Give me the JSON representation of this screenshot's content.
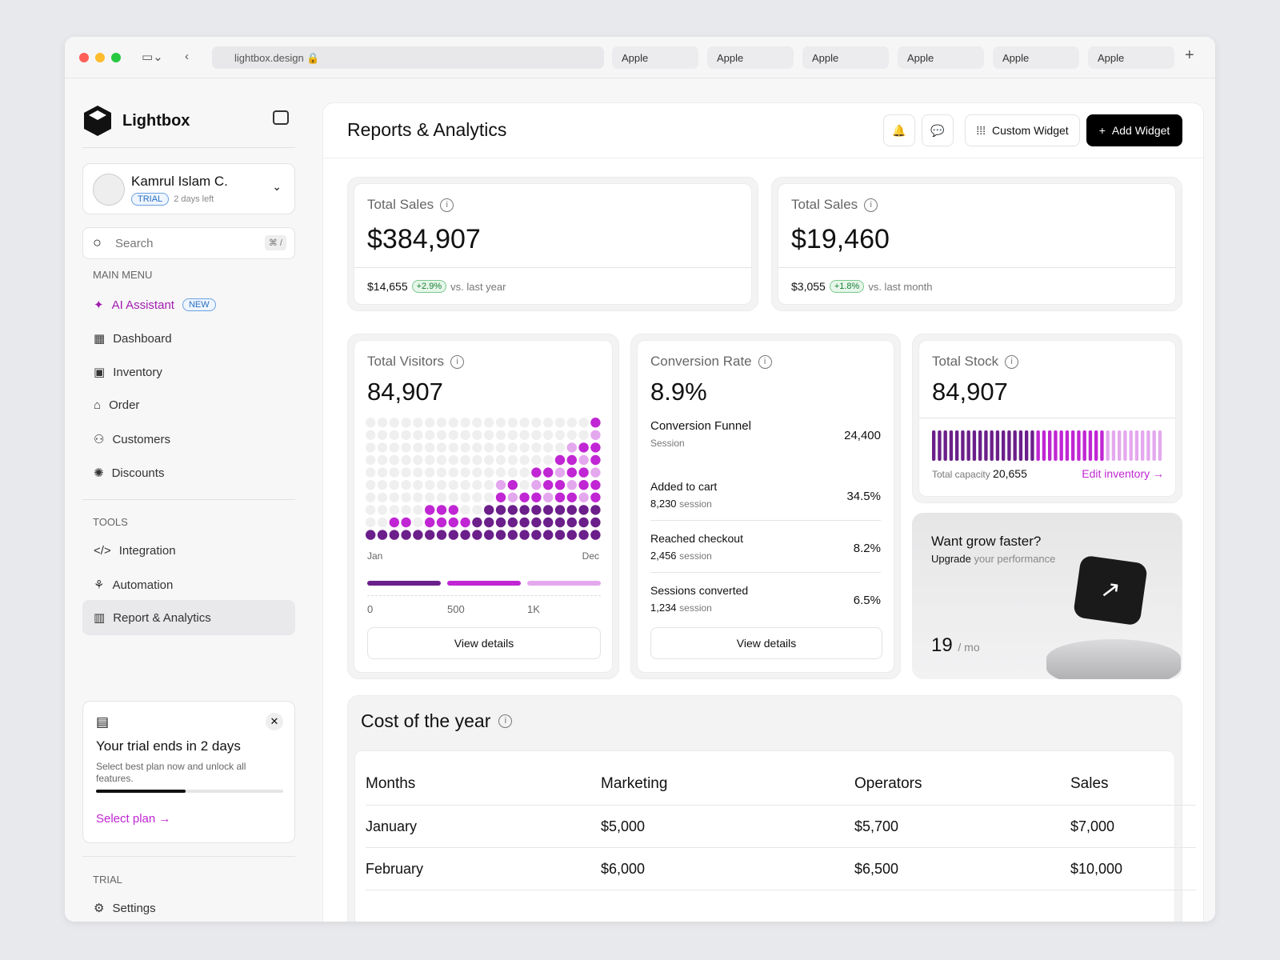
{
  "browser": {
    "url": "lightbox.design",
    "tabs": [
      "Apple",
      "Apple",
      "Apple",
      "Apple",
      "Apple",
      "Apple"
    ]
  },
  "brand": {
    "name": "Lightbox"
  },
  "user": {
    "name": "Kamrul Islam C.",
    "badge": "TRIAL",
    "note": "2 days left"
  },
  "search": {
    "placeholder": "Search",
    "shortcut": "⌘ /"
  },
  "sidebar": {
    "main_menu_label": "MAIN MENU",
    "ai": {
      "label": "AI Assistant",
      "badge": "NEW"
    },
    "items": [
      "Dashboard",
      "Inventory",
      "Order",
      "Customers",
      "Discounts"
    ],
    "tools_label": "TOOLS",
    "tools": [
      "Integration",
      "Automation",
      "Report & Analytics"
    ],
    "trial_label": "TRIAL",
    "settings": "Settings"
  },
  "trial_card": {
    "title": "Your trial ends in 2 days",
    "text": "Select best plan now and unlock all features.",
    "progress": 0.48,
    "link": "Select plan"
  },
  "header": {
    "title": "Reports & Analytics",
    "custom_widget": "Custom Widget",
    "add_widget": "Add Widget"
  },
  "sales1": {
    "label": "Total Sales",
    "value": "$384,907",
    "delta_value": "$14,655",
    "delta_pct": "+2.9%",
    "delta_text": "vs. last year"
  },
  "sales2": {
    "label": "Total Sales",
    "value": "$19,460",
    "delta_value": "$3,055",
    "delta_pct": "+1.8%",
    "delta_text": "vs. last month"
  },
  "visitors": {
    "label": "Total Visitors",
    "value": "84,907",
    "start": "Jan",
    "end": "Dec",
    "scale": [
      "0",
      "500",
      "1K"
    ],
    "button": "View details"
  },
  "conversion": {
    "label": "Conversion Rate",
    "value": "8.9%",
    "funnel_title": "Conversion Funnel",
    "funnel_sub": "Session",
    "funnel_value": "24,400",
    "rows": [
      {
        "name": "Added to cart",
        "count": "8,230",
        "unit": "session",
        "pct": "34.5%"
      },
      {
        "name": "Reached checkout",
        "count": "2,456",
        "unit": "session",
        "pct": "8.2%"
      },
      {
        "name": "Sessions converted",
        "count": "1,234",
        "unit": "session",
        "pct": "6.5%"
      }
    ],
    "button": "View details"
  },
  "stock": {
    "label": "Total Stock",
    "value": "84,907",
    "capacity_label": "Total capacity",
    "capacity_value": "20,655",
    "link": "Edit inventory"
  },
  "promo": {
    "title": "Want grow faster?",
    "sub_bold": "Upgrade",
    "sub_rest": "your performance",
    "price": "19",
    "unit": "/ mo"
  },
  "cost": {
    "title": "Cost of the year",
    "columns": [
      "Months",
      "Marketing",
      "Operators",
      "Sales"
    ],
    "rows": [
      [
        "January",
        "$5,000",
        "$5,700",
        "$7,000"
      ],
      [
        "February",
        "$6,000",
        "$6,500",
        "$10,000"
      ]
    ]
  },
  "colors": {
    "accent": "#c026d3",
    "dark": "#6b1f8a",
    "light": "#e4a8ee"
  }
}
